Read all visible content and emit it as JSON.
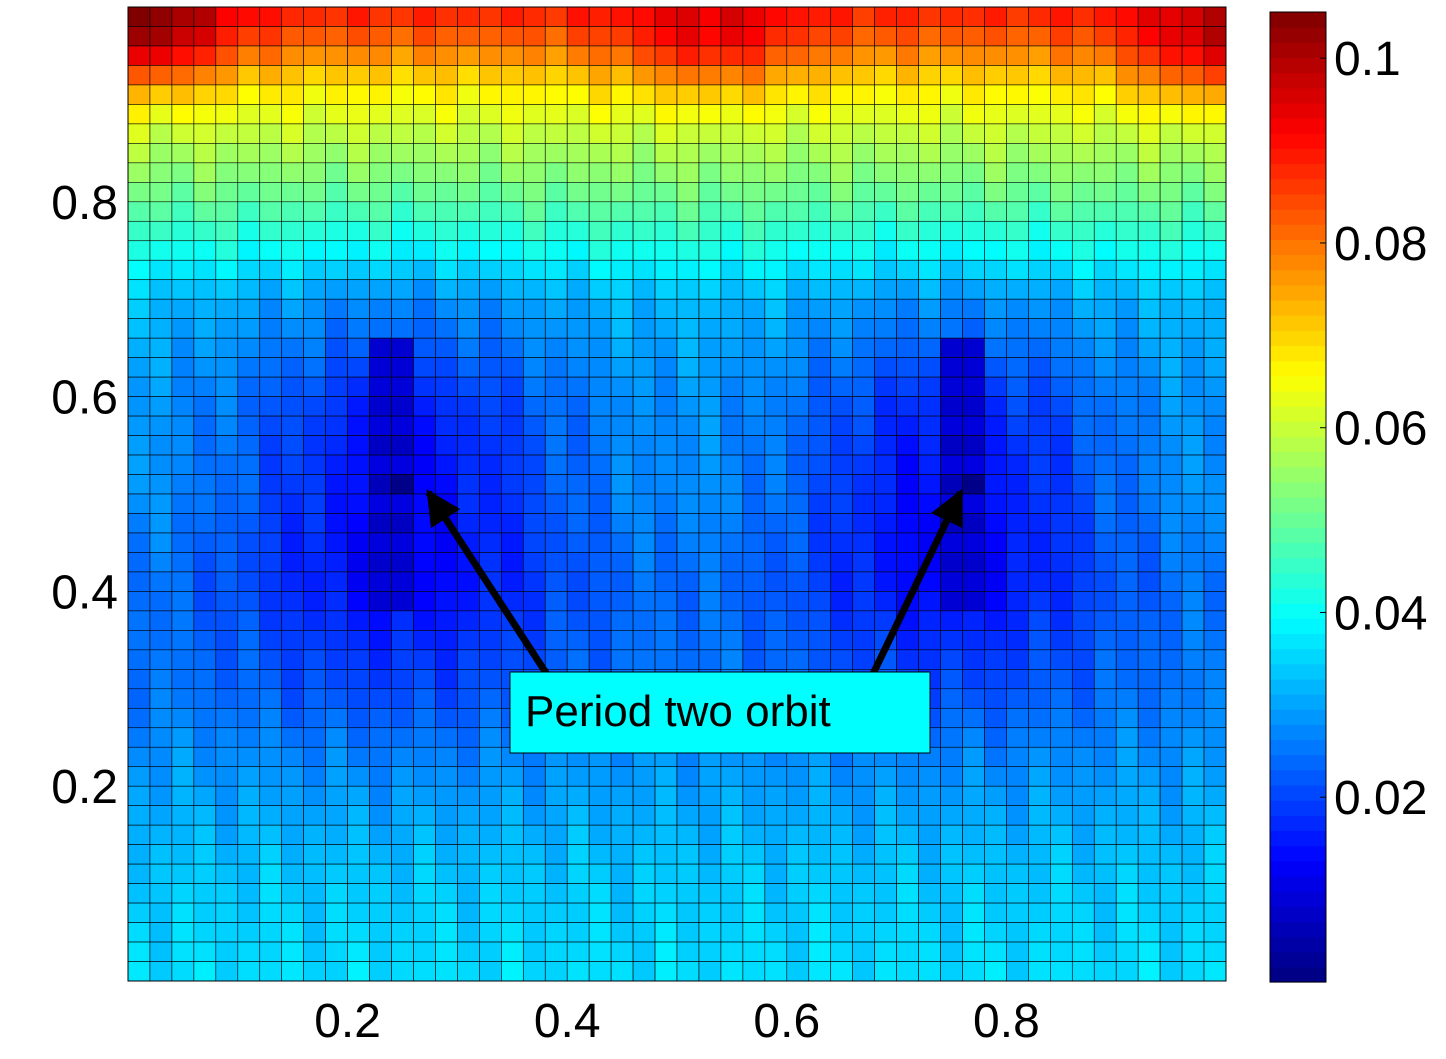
{
  "chart_data": {
    "type": "heatmap",
    "title": "",
    "xlabel": "",
    "ylabel": "",
    "grid": {
      "rows": 50,
      "cols": 50
    },
    "xlim": [
      0,
      1
    ],
    "ylim": [
      0,
      1
    ],
    "xticks": [
      {
        "value": 0.2,
        "label": "0.2"
      },
      {
        "value": 0.4,
        "label": "0.4"
      },
      {
        "value": 0.6,
        "label": "0.6"
      },
      {
        "value": 0.8,
        "label": "0.8"
      }
    ],
    "yticks": [
      {
        "value": 0.2,
        "label": "0.2"
      },
      {
        "value": 0.4,
        "label": "0.4"
      },
      {
        "value": 0.6,
        "label": "0.6"
      },
      {
        "value": 0.8,
        "label": "0.8"
      }
    ],
    "colorbar": {
      "colormap": "jet",
      "range": [
        0,
        0.105
      ],
      "ticks": [
        {
          "value": 0.02,
          "label": "0.02"
        },
        {
          "value": 0.04,
          "label": "0.04"
        },
        {
          "value": 0.06,
          "label": "0.06"
        },
        {
          "value": 0.08,
          "label": "0.08"
        },
        {
          "value": 0.1,
          "label": "0.1"
        }
      ]
    },
    "annotation": {
      "text": "Period two orbit",
      "box_color": "#00ffff",
      "arrow_color": "#000000",
      "targets": [
        {
          "x": 0.27,
          "y": 0.51
        },
        {
          "x": 0.76,
          "y": 0.51
        }
      ]
    },
    "value_field": {
      "description_free": true,
      "base_by_y": [
        [
          0.0,
          0.036
        ],
        [
          0.1,
          0.034
        ],
        [
          0.2,
          0.03
        ],
        [
          0.3,
          0.026
        ],
        [
          0.4,
          0.026
        ],
        [
          0.5,
          0.03
        ],
        [
          0.6,
          0.03
        ],
        [
          0.7,
          0.033
        ],
        [
          0.75,
          0.042
        ],
        [
          0.8,
          0.05
        ],
        [
          0.86,
          0.058
        ],
        [
          0.92,
          0.068
        ],
        [
          0.96,
          0.08
        ],
        [
          1.0,
          0.09
        ]
      ],
      "wells": [
        {
          "cx": 0.25,
          "cy": 0.5,
          "rx": 0.16,
          "ry": 0.2,
          "depth": 0.016
        },
        {
          "cx": 0.75,
          "cy": 0.5,
          "rx": 0.15,
          "ry": 0.19,
          "depth": 0.016
        }
      ],
      "stripes": [
        {
          "x0": 0.225,
          "x1": 0.265,
          "y0": 0.38,
          "y1": 0.65,
          "value": 0.006
        },
        {
          "x0": 0.735,
          "x1": 0.775,
          "y0": 0.38,
          "y1": 0.65,
          "value": 0.006
        }
      ],
      "minima": [
        {
          "x": 0.255,
          "y": 0.515,
          "value": 0.001
        },
        {
          "x": 0.765,
          "y": 0.515,
          "value": 0.001
        }
      ],
      "corner_peaks": [
        {
          "x": 0.01,
          "y": 0.99,
          "value": 0.105
        },
        {
          "x": 0.53,
          "y": 0.99,
          "value": 0.095
        },
        {
          "x": 0.99,
          "y": 0.98,
          "value": 0.098
        }
      ]
    }
  }
}
